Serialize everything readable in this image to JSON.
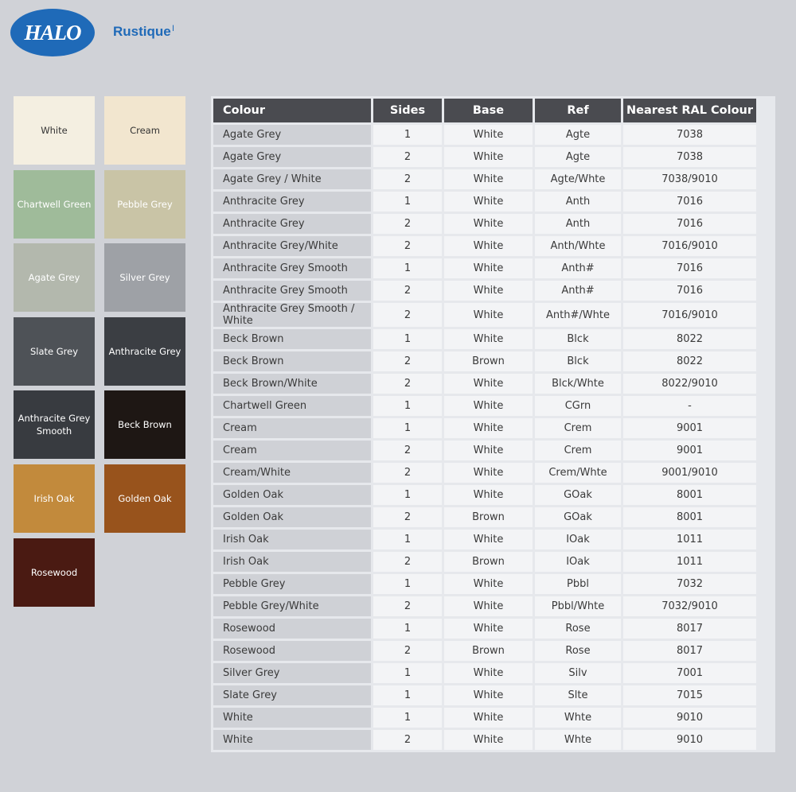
{
  "header": {
    "logo_text": "HALO",
    "title": "Rustique",
    "title_mark": "I"
  },
  "swatches": [
    {
      "label": "White",
      "color": "#f4efe1",
      "text": "dark"
    },
    {
      "label": "Cream",
      "color": "#f2e6cf",
      "text": "dark"
    },
    {
      "label": "Chartwell Green",
      "color": "#9fbb9a",
      "text": "light"
    },
    {
      "label": "Pebble Grey",
      "color": "#c9c4a6",
      "text": "light"
    },
    {
      "label": "Agate Grey",
      "color": "#b3b8ad",
      "text": "light"
    },
    {
      "label": "Silver Grey",
      "color": "#9ea1a6",
      "text": "light"
    },
    {
      "label": "Slate Grey",
      "color": "#4e5257",
      "text": "light"
    },
    {
      "label": "Anthracite Grey",
      "color": "#3b3e43",
      "text": "light"
    },
    {
      "label": "Anthracite Grey Smooth",
      "color": "#383b40",
      "text": "light"
    },
    {
      "label": "Beck Brown",
      "color": "#1e1714",
      "text": "light"
    },
    {
      "label": "Irish Oak",
      "color": "#c28a3c",
      "text": "light"
    },
    {
      "label": "Golden Oak",
      "color": "#98531c",
      "text": "light"
    },
    {
      "label": "Rosewood",
      "color": "#4a1a12",
      "text": "light"
    }
  ],
  "table": {
    "headers": [
      "Colour",
      "Sides",
      "Base",
      "Ref",
      "Nearest RAL Colour"
    ],
    "rows": [
      [
        "Agate Grey",
        "1",
        "White",
        "Agte",
        "7038"
      ],
      [
        "Agate Grey",
        "2",
        "White",
        "Agte",
        "7038"
      ],
      [
        "Agate Grey / White",
        "2",
        "White",
        "Agte/Whte",
        "7038/9010"
      ],
      [
        "Anthracite Grey",
        "1",
        "White",
        "Anth",
        "7016"
      ],
      [
        "Anthracite Grey",
        "2",
        "White",
        "Anth",
        "7016"
      ],
      [
        "Anthracite Grey/White",
        "2",
        "White",
        "Anth/Whte",
        "7016/9010"
      ],
      [
        "Anthracite Grey Smooth",
        "1",
        "White",
        "Anth#",
        "7016"
      ],
      [
        "Anthracite Grey Smooth",
        "2",
        "White",
        "Anth#",
        "7016"
      ],
      [
        "Anthracite Grey Smooth / White",
        "2",
        "White",
        "Anth#/Whte",
        "7016/9010"
      ],
      [
        "Beck Brown",
        "1",
        "White",
        "Blck",
        "8022"
      ],
      [
        "Beck Brown",
        "2",
        "Brown",
        "Blck",
        "8022"
      ],
      [
        "Beck Brown/White",
        "2",
        "White",
        "Blck/Whte",
        "8022/9010"
      ],
      [
        "Chartwell Green",
        "1",
        "White",
        "CGrn",
        "-"
      ],
      [
        "Cream",
        "1",
        "White",
        "Crem",
        "9001"
      ],
      [
        "Cream",
        "2",
        "White",
        "Crem",
        "9001"
      ],
      [
        "Cream/White",
        "2",
        "White",
        "Crem/Whte",
        "9001/9010"
      ],
      [
        "Golden Oak",
        "1",
        "White",
        "GOak",
        "8001"
      ],
      [
        "Golden Oak",
        "2",
        "Brown",
        "GOak",
        "8001"
      ],
      [
        "Irish Oak",
        "1",
        "White",
        "IOak",
        "1011"
      ],
      [
        "Irish Oak",
        "2",
        "Brown",
        "IOak",
        "1011"
      ],
      [
        "Pebble Grey",
        "1",
        "White",
        "Pbbl",
        "7032"
      ],
      [
        "Pebble Grey/White",
        "2",
        "White",
        "Pbbl/Whte",
        "7032/9010"
      ],
      [
        "Rosewood",
        "1",
        "White",
        "Rose",
        "8017"
      ],
      [
        "Rosewood",
        "2",
        "Brown",
        "Rose",
        "8017"
      ],
      [
        "Silver Grey",
        "1",
        "White",
        "Silv",
        "7001"
      ],
      [
        "Slate Grey",
        "1",
        "White",
        "Slte",
        "7015"
      ],
      [
        "White",
        "1",
        "White",
        "Whte",
        "9010"
      ],
      [
        "White",
        "2",
        "White",
        "Whte",
        "9010"
      ]
    ]
  }
}
